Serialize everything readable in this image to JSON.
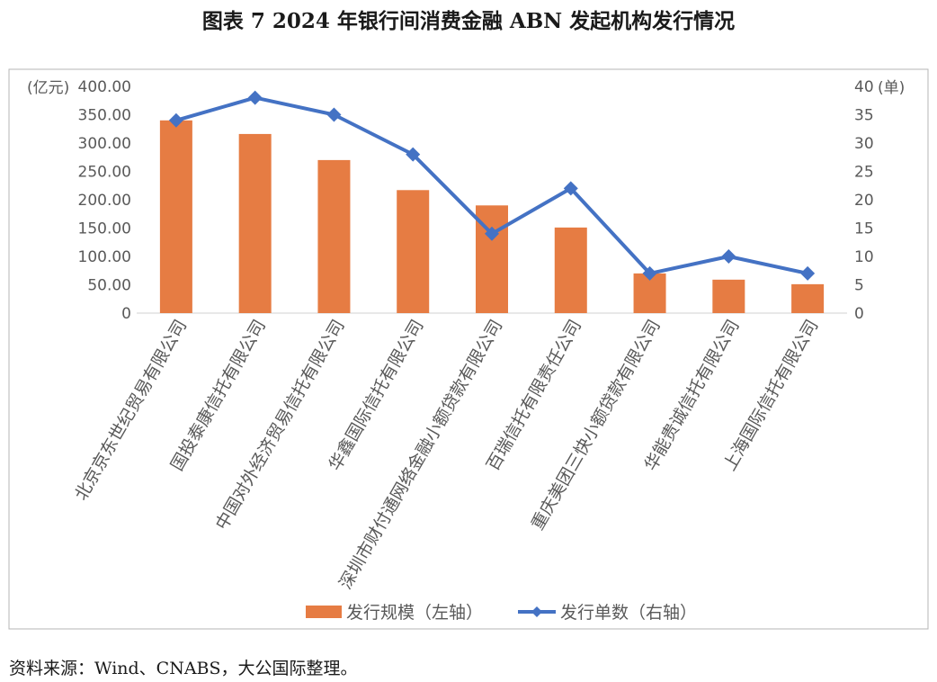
{
  "title": "图表 7  2024 年银行间消费金融 ABN 发起机构发行情况",
  "source": "资料来源：Wind、CNABS，大公国际整理。",
  "chart_data": {
    "type": "bar",
    "categories": [
      "北京京东世纪贸易有限公司",
      "国投泰康信托有限公司",
      "中国对外经济贸易信托有限公司",
      "华鑫国际信托有限公司",
      "深圳市财付通网络金融小额贷款有限公司",
      "百瑞信托有限责任公司",
      "重庆美团三快小额贷款有限公司",
      "华能贵诚信托有限公司",
      "上海国际信托有限公司"
    ],
    "series": [
      {
        "name": "发行规模（左轴）",
        "type": "bar",
        "axis": "left",
        "color": "#E67C43",
        "values": [
          340,
          316,
          270,
          217,
          190,
          151,
          70,
          59,
          51
        ]
      },
      {
        "name": "发行单数（右轴）",
        "type": "line",
        "axis": "right",
        "color": "#4472C4",
        "values": [
          34,
          38,
          35,
          28,
          14,
          22,
          7,
          10,
          7
        ]
      }
    ],
    "left_axis": {
      "unit": "(亿元)",
      "min": 0,
      "max": 400,
      "step": 50,
      "ticks": [
        "0",
        "50.00",
        "100.00",
        "150.00",
        "200.00",
        "250.00",
        "300.00",
        "350.00",
        "400.00"
      ]
    },
    "right_axis": {
      "unit": "(单)",
      "min": 0,
      "max": 40,
      "step": 5,
      "ticks": [
        "0",
        "5",
        "10",
        "15",
        "20",
        "25",
        "30",
        "35",
        "40"
      ]
    },
    "grid": false,
    "legend_position": "bottom"
  }
}
